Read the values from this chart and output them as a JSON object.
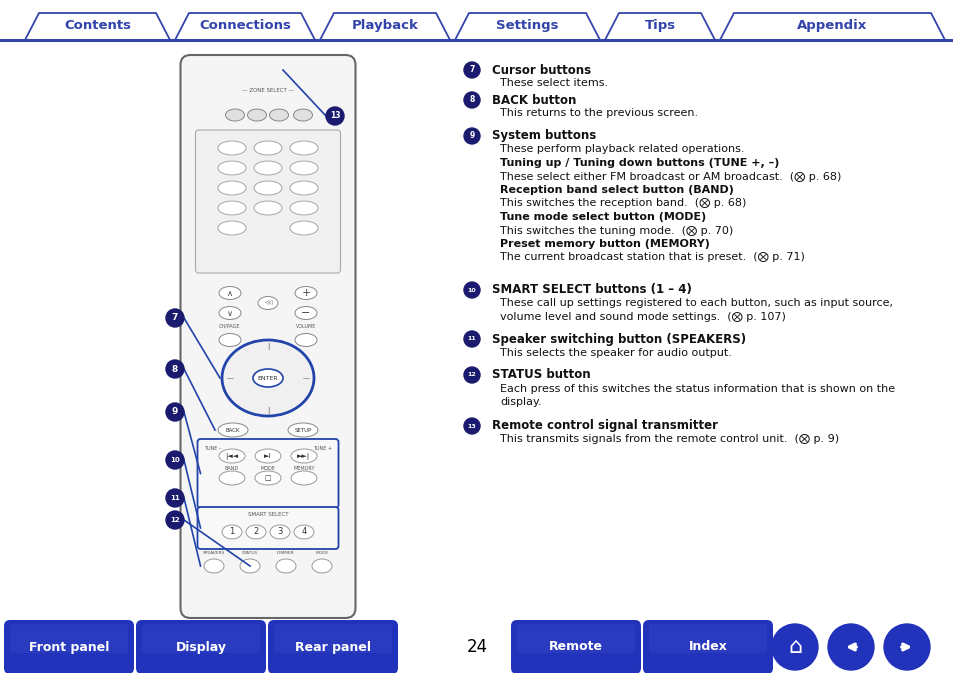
{
  "tab_labels": [
    "Contents",
    "Connections",
    "Playback",
    "Settings",
    "Tips",
    "Appendix"
  ],
  "tab_border_color": "#3344aa",
  "bottom_buttons": [
    "Front panel",
    "Display",
    "Rear panel",
    "Remote",
    "Index"
  ],
  "page_number": "24",
  "bg_color": "#ffffff",
  "text_color": "#111111",
  "nav_button_color": "#2233bb",
  "items": [
    {
      "num": "7",
      "title": "Cursor buttons",
      "lines": [
        [
          "normal",
          "These select items."
        ]
      ]
    },
    {
      "num": "8",
      "title": "BACK button",
      "lines": [
        [
          "normal",
          "This returns to the previous screen."
        ]
      ]
    },
    {
      "num": "9",
      "title": "System buttons",
      "lines": [
        [
          "normal",
          "These perform playback related operations."
        ],
        [
          "bold",
          "Tuning up / Tuning down buttons (TUNE +, –)"
        ],
        [
          "normal",
          "These select either FM broadcast or AM broadcast.  (⨂ p. 68)"
        ],
        [
          "bold",
          "Reception band select button (BAND)"
        ],
        [
          "normal",
          "This switches the reception band.  (⨂ p. 68)"
        ],
        [
          "bold",
          "Tune mode select button (MODE)"
        ],
        [
          "normal",
          "This switches the tuning mode.  (⨂ p. 70)"
        ],
        [
          "bold",
          "Preset memory button (MEMORY)"
        ],
        [
          "normal",
          "The current broadcast station that is preset.  (⨂ p. 71)"
        ]
      ]
    },
    {
      "num": "10",
      "title": "SMART SELECT buttons (1 – 4)",
      "lines": [
        [
          "normal",
          "These call up settings registered to each button, such as input source,"
        ],
        [
          "normal",
          "volume level and sound mode settings.  (⨂ p. 107)"
        ]
      ]
    },
    {
      "num": "11",
      "title": "Speaker switching button (SPEAKERS)",
      "lines": [
        [
          "normal",
          "This selects the speaker for audio output."
        ]
      ]
    },
    {
      "num": "12",
      "title": "STATUS button",
      "lines": [
        [
          "normal",
          "Each press of this switches the status information that is shown on the"
        ],
        [
          "normal",
          "display."
        ]
      ]
    },
    {
      "num": "13",
      "title": "Remote control signal transmitter",
      "lines": [
        [
          "normal",
          "This transmits signals from the remote control unit.  (⨂ p. 9)"
        ]
      ]
    }
  ]
}
